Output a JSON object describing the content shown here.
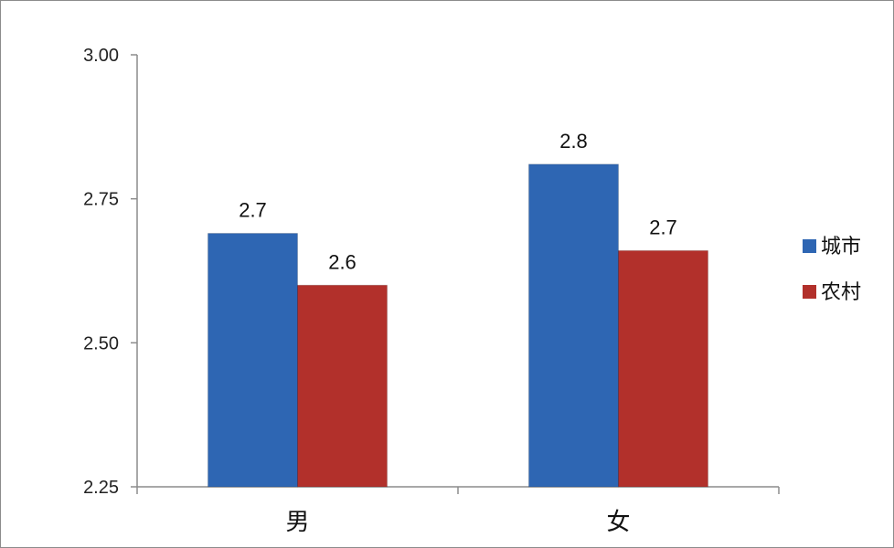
{
  "chart_data": {
    "type": "bar",
    "categories": [
      "男",
      "女"
    ],
    "series": [
      {
        "name": "城市",
        "values": [
          2.69,
          2.81
        ],
        "labels": [
          "2.7",
          "2.8"
        ],
        "color": "#2e66b3"
      },
      {
        "name": "农村",
        "values": [
          2.6,
          2.66
        ],
        "labels": [
          "2.6",
          "2.7"
        ],
        "color": "#b2302b"
      }
    ],
    "yticks": [
      2.25,
      2.5,
      2.75,
      3.0
    ],
    "ytick_labels": [
      "2.25",
      "2.50",
      "2.75",
      "3.00"
    ],
    "ylim": [
      2.25,
      3.0
    ],
    "grid": false,
    "legend": "right",
    "title": "",
    "xlabel": "",
    "ylabel": ""
  }
}
